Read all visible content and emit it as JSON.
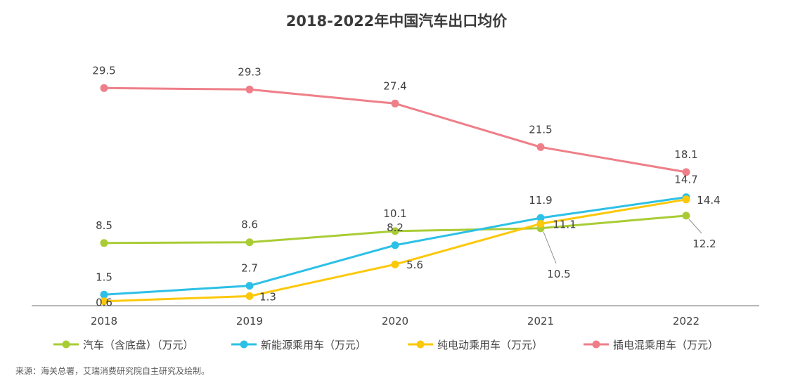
{
  "chart_data": {
    "type": "line",
    "title": "2018-2022年中国汽车出口均价",
    "xlabel": "",
    "ylabel": "",
    "categories": [
      "2018",
      "2019",
      "2020",
      "2021",
      "2022"
    ],
    "series": [
      {
        "name": "汽车（含底盘）（万元）",
        "color": "#a9cc35",
        "values": [
          8.5,
          8.6,
          10.1,
          10.5,
          12.2
        ]
      },
      {
        "name": "新能源乘用车（万元）",
        "color": "#2cc0e6",
        "values": [
          1.5,
          2.7,
          8.2,
          11.9,
          14.7
        ]
      },
      {
        "name": "纯电动乘用车（万元）",
        "color": "#fcc80a",
        "values": [
          0.6,
          1.3,
          5.6,
          11.1,
          14.4
        ]
      },
      {
        "name": "插电混乘用车（万元）",
        "color": "#ee7f89",
        "values": [
          29.5,
          29.3,
          27.4,
          21.5,
          18.1
        ]
      }
    ],
    "data_labels": {
      "汽车（含底盘）（万元）": [
        "8.5",
        "8.6",
        "10.1",
        "10.5",
        "12.2"
      ],
      "新能源乘用车（万元）": [
        "1.5",
        "2.7",
        "8.2",
        "11.9",
        "14.7"
      ],
      "纯电动乘用车（万元）": [
        "0.6",
        "1.3",
        "5.6",
        "11.1",
        "14.4"
      ],
      "插电混乘用车（万元）": [
        "29.5",
        "29.3",
        "27.4",
        "21.5",
        "18.1"
      ]
    },
    "ylim": [
      0,
      32
    ],
    "grid": false,
    "legend_position": "bottom"
  },
  "source": "来源：海关总署，艾瑞消费研究院自主研究及绘制。"
}
